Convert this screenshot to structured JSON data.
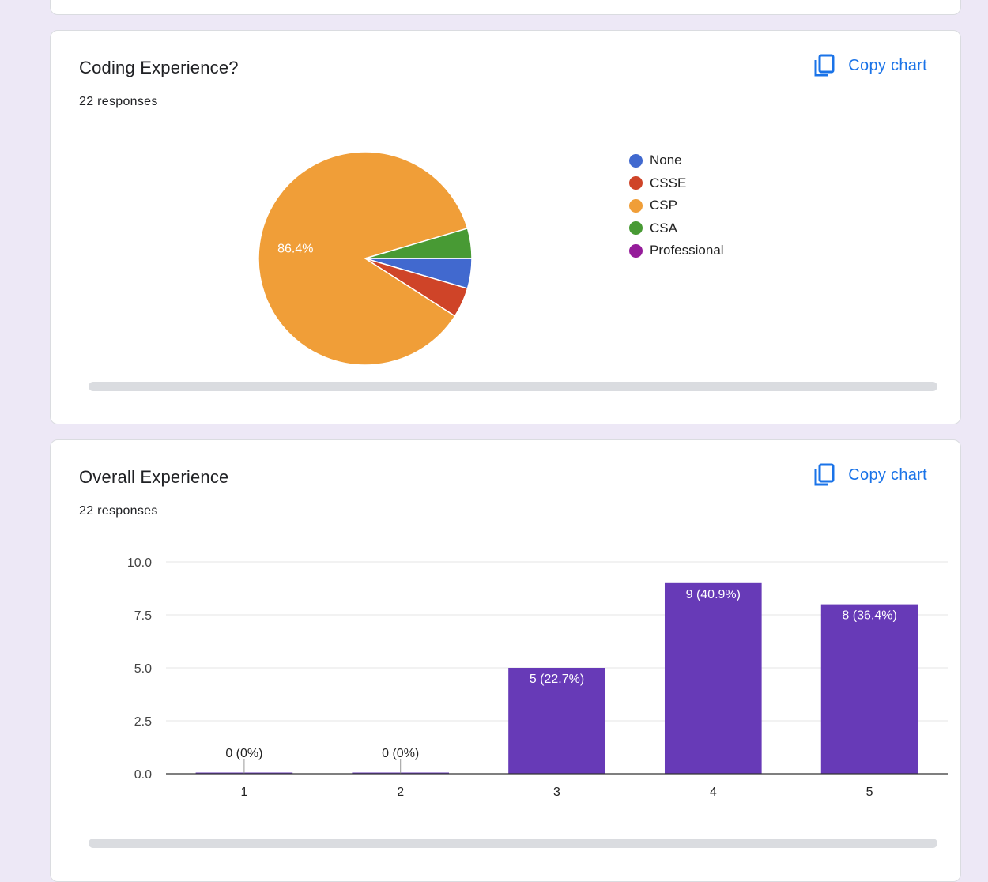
{
  "cards": [
    {
      "title": "Coding Experience?",
      "responses": "22 responses",
      "copy_label": "Copy chart"
    },
    {
      "title": "Overall Experience",
      "responses": "22 responses",
      "copy_label": "Copy chart"
    }
  ],
  "colors": {
    "background": "#ede8f6",
    "accent": "#1a73e8",
    "bar": "#673ab7"
  },
  "chart_data": [
    {
      "type": "pie",
      "title": "Coding Experience?",
      "slices": [
        {
          "label": "None",
          "value": 1,
          "color": "#4169cf"
        },
        {
          "label": "CSSE",
          "value": 1,
          "color": "#cf4428"
        },
        {
          "label": "CSP",
          "value": 19,
          "color": "#f09e38"
        },
        {
          "label": "CSA",
          "value": 1,
          "color": "#489a34"
        },
        {
          "label": "Professional",
          "value": 0,
          "color": "#951c9a"
        }
      ],
      "data_labels": [
        {
          "slice": "CSP",
          "text": "86.4%"
        }
      ],
      "legend_position": "right"
    },
    {
      "type": "bar",
      "title": "Overall Experience",
      "categories": [
        "1",
        "2",
        "3",
        "4",
        "5"
      ],
      "values": [
        0,
        0,
        5,
        9,
        8
      ],
      "data_labels": [
        "0 (0%)",
        "0 (0%)",
        "5 (22.7%)",
        "9 (40.9%)",
        "8 (36.4%)"
      ],
      "y_ticks": [
        "0.0",
        "2.5",
        "5.0",
        "7.5",
        "10.0"
      ],
      "ylim": [
        0,
        10
      ],
      "grid": true,
      "color": "#673ab7"
    }
  ]
}
